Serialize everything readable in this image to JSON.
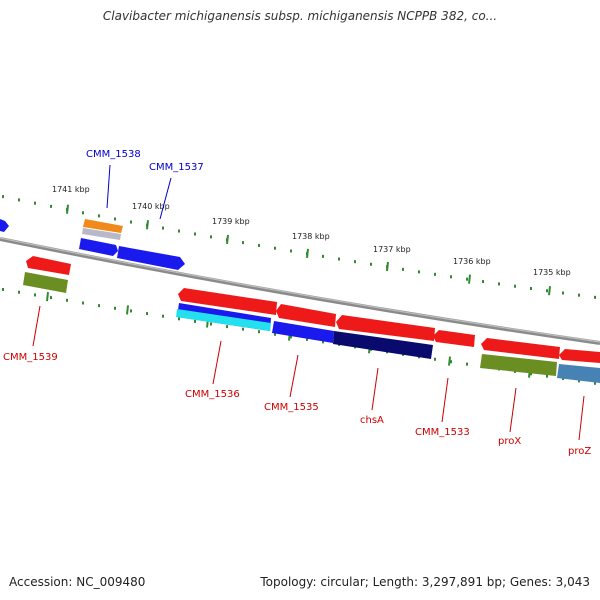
{
  "title": "Clavibacter michiganensis subsp. michiganensis NCPPB 382, co...",
  "footer": {
    "accession": "Accession: NC_009480",
    "summary": "Topology: circular; Length: 3,297,891 bp; Genes: 3,043"
  },
  "kbp_labels": [
    "1741 kbp",
    "1740 kbp",
    "1739 kbp",
    "1738 kbp",
    "1737 kbp",
    "1736 kbp",
    "1735 kbp"
  ],
  "gene_labels": {
    "top": [
      "CMM_1538",
      "CMM_1537"
    ],
    "bottom": [
      "CMM_1539",
      "CMM_1536",
      "CMM_1535",
      "chsA",
      "CMM_1533",
      "proX",
      "proZ"
    ]
  },
  "colors": {
    "forward_label": "#0000cc",
    "reverse_label": "#cc0000",
    "backbone": "#888888",
    "tick": "#2e8b2e"
  }
}
